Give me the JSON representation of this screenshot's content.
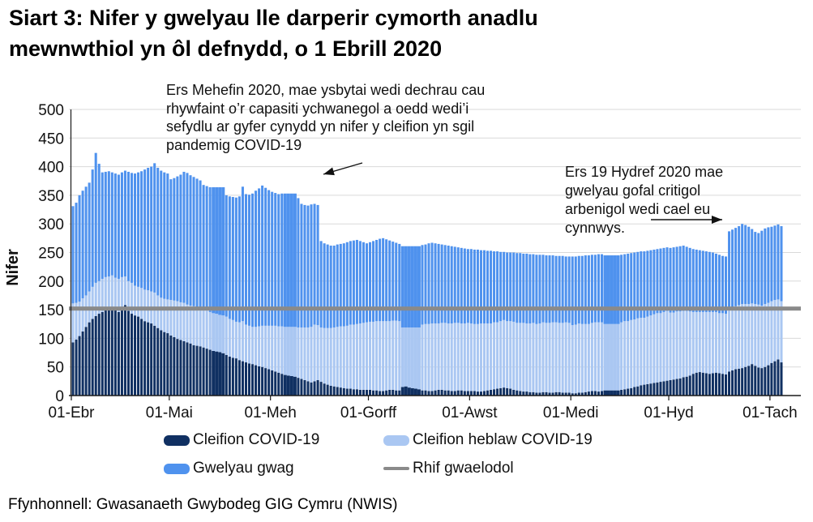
{
  "header": {
    "title_lines": [
      "Siart 3: Nifer y gwelyau lle darperir cymorth anadlu",
      "mewnwthiol yn ôl defnydd, o 1 Ebrill 2020"
    ]
  },
  "annotations": [
    {
      "lines": [
        "Ers Mehefin 2020, mae ysbytai wedi dechrau cau",
        "rhywfaint o’r capasiti ychwanegol a oedd wedi’i",
        "sefydlu ar gyfer cynydd yn nifer y cleifion yn sgil",
        "pandemig COVID-19"
      ]
    },
    {
      "lines": [
        "Ers 19 Hydref 2020 mae",
        "gwelyau gofal critigol",
        "arbenigol wedi cael eu",
        "cynnwys."
      ]
    }
  ],
  "legend": [
    {
      "label": "Cleifion COVID-19",
      "color": "#103062",
      "shape": "box"
    },
    {
      "label": "Cleifion heblaw COVID-19",
      "color": "#aac7f2",
      "shape": "box"
    },
    {
      "label": "Gwelyau gwag",
      "color": "#4f92ee",
      "shape": "box"
    },
    {
      "label": "Rhif gwaelodol",
      "color": "#8a8a8a",
      "shape": "line"
    }
  ],
  "footer": {
    "source": "Ffynhonnell: Gwasanaeth Gwybodeg GIG Cymru (NWIS)"
  },
  "colors": {
    "covid": "#103062",
    "non_covid": "#aac7f2",
    "empty_beds": "#4f92ee",
    "baseline": "#8a8a8a",
    "gridline": "#d9d9d9",
    "axis": "#1a1a1a"
  },
  "chart_data": {
    "type": "bar",
    "stacked": true,
    "title": "Siart 3: Nifer y gwelyau lle darperir cymorth anadlu mewnwthiol yn ôl defnydd, o 1 Ebrill 2020",
    "xlabel": "",
    "ylabel": "Nifer",
    "ylim": [
      0,
      500
    ],
    "y_ticks": [
      0,
      50,
      100,
      150,
      200,
      250,
      300,
      350,
      400,
      450,
      500
    ],
    "x_unit": "day",
    "x_tick_labels": [
      "01-Ebr",
      "01-Mai",
      "01-Meh",
      "01-Gorff",
      "01-Awst",
      "01-Medi",
      "01-Hyd",
      "01-Tach"
    ],
    "x_tick_day_offsets": [
      0,
      30,
      61,
      91,
      122,
      153,
      183,
      214
    ],
    "baseline": {
      "label": "Rhif gwaelodol",
      "value": 152
    },
    "legend_position": "bottom",
    "grid": "horizontal",
    "merged_bar_ranges": [
      [
        43,
        46
      ],
      [
        65,
        68
      ],
      [
        101,
        106
      ],
      [
        163,
        167
      ]
    ],
    "series": [
      {
        "name": "Cleifion COVID-19",
        "color": "#103062",
        "values": [
          93,
          98,
          104,
          112,
          120,
          128,
          134,
          139,
          143,
          146,
          150,
          152,
          155,
          149,
          146,
          152,
          158,
          148,
          143,
          140,
          138,
          134,
          130,
          128,
          126,
          122,
          118,
          114,
          111,
          109,
          105,
          102,
          99,
          97,
          95,
          93,
          91,
          88,
          87,
          86,
          84,
          82,
          80,
          78,
          77,
          76,
          74,
          71,
          68,
          66,
          65,
          62,
          60,
          58,
          56,
          55,
          53,
          51,
          50,
          48,
          46,
          44,
          42,
          40,
          38,
          36,
          35,
          34,
          33,
          31,
          29,
          27,
          25,
          23,
          25,
          27,
          24,
          21,
          19,
          17,
          16,
          15,
          14,
          13,
          12,
          12,
          11,
          11,
          10,
          10,
          10,
          10,
          9,
          9,
          8,
          8,
          9,
          10,
          10,
          9,
          9,
          15,
          16,
          14,
          13,
          12,
          11,
          9,
          9,
          8,
          8,
          9,
          10,
          10,
          9,
          9,
          8,
          8,
          9,
          9,
          8,
          8,
          8,
          8,
          7,
          7,
          8,
          9,
          10,
          11,
          12,
          13,
          14,
          13,
          12,
          10,
          9,
          8,
          7,
          7,
          6,
          6,
          5,
          5,
          6,
          6,
          5,
          5,
          6,
          6,
          5,
          5,
          5,
          4,
          4,
          5,
          5,
          6,
          7,
          8,
          8,
          7,
          8,
          9,
          9,
          9,
          9,
          9,
          10,
          11,
          12,
          13,
          15,
          16,
          18,
          19,
          20,
          21,
          22,
          23,
          24,
          25,
          26,
          27,
          28,
          29,
          30,
          32,
          33,
          35,
          38,
          40,
          41,
          40,
          39,
          38,
          39,
          40,
          39,
          38,
          37,
          42,
          44,
          46,
          47,
          48,
          50,
          52,
          55,
          52,
          49,
          48,
          50,
          53,
          57,
          60,
          63,
          58
        ]
      },
      {
        "name": "Cleifion heblaw COVID-19",
        "color": "#aac7f2",
        "values": [
          68,
          64,
          60,
          58,
          55,
          54,
          56,
          58,
          57,
          58,
          57,
          56,
          55,
          57,
          58,
          55,
          50,
          52,
          54,
          52,
          52,
          54,
          55,
          56,
          56,
          58,
          57,
          57,
          58,
          59,
          62,
          64,
          66,
          66,
          67,
          66,
          66,
          68,
          67,
          67,
          68,
          69,
          66,
          66,
          66,
          65,
          66,
          67,
          66,
          66,
          64,
          66,
          70,
          66,
          66,
          65,
          67,
          70,
          72,
          74,
          76,
          78,
          80,
          81,
          83,
          84,
          85,
          86,
          87,
          88,
          90,
          92,
          94,
          97,
          99,
          96,
          95,
          97,
          99,
          101,
          103,
          105,
          107,
          108,
          110,
          112,
          113,
          114,
          116,
          117,
          118,
          119,
          120,
          121,
          122,
          122,
          121,
          120,
          121,
          122,
          121,
          104,
          103,
          105,
          106,
          107,
          108,
          115,
          116,
          117,
          118,
          117,
          116,
          117,
          118,
          117,
          118,
          119,
          118,
          117,
          118,
          119,
          118,
          117,
          118,
          119,
          118,
          117,
          116,
          117,
          116,
          117,
          118,
          117,
          118,
          119,
          118,
          119,
          120,
          119,
          120,
          121,
          120,
          121,
          122,
          121,
          122,
          123,
          122,
          121,
          122,
          123,
          122,
          119,
          120,
          121,
          120,
          119,
          118,
          119,
          120,
          121,
          120,
          116,
          116,
          116,
          116,
          116,
          118,
          119,
          118,
          119,
          118,
          119,
          118,
          117,
          118,
          119,
          120,
          121,
          120,
          121,
          122,
          118,
          117,
          118,
          117,
          116,
          115,
          112,
          108,
          106,
          105,
          106,
          107,
          108,
          107,
          106,
          105,
          106,
          106,
          110,
          109,
          110,
          111,
          112,
          110,
          108,
          106,
          108,
          110,
          109,
          110,
          109,
          108,
          107,
          105,
          107
        ]
      },
      {
        "name": "Gwelyau gwag",
        "color": "#4f92ee",
        "values": [
          170,
          175,
          186,
          188,
          190,
          190,
          205,
          227,
          205,
          186,
          184,
          184,
          180,
          182,
          182,
          183,
          185,
          191,
          192,
          196,
          200,
          204,
          210,
          214,
          218,
          226,
          223,
          222,
          221,
          220,
          211,
          214,
          218,
          223,
          229,
          230,
          228,
          226,
          225,
          223,
          216,
          215,
          218,
          220,
          221,
          223,
          224,
          212,
          214,
          215,
          217,
          220,
          235,
          228,
          229,
          233,
          238,
          241,
          245,
          241,
          237,
          234,
          232,
          231,
          232,
          233,
          233,
          233,
          233,
          226,
          216,
          214,
          213,
          214,
          211,
          210,
          151,
          148,
          146,
          144,
          143,
          144,
          144,
          145,
          146,
          146,
          147,
          147,
          144,
          141,
          138,
          139,
          141,
          142,
          144,
          145,
          143,
          141,
          138,
          136,
          135,
          142,
          142,
          142,
          142,
          142,
          142,
          139,
          139,
          141,
          141,
          140,
          139,
          137,
          136,
          136,
          135,
          133,
          132,
          132,
          131,
          129,
          130,
          130,
          130,
          128,
          128,
          127,
          127,
          124,
          124,
          121,
          119,
          120,
          120,
          121,
          122,
          122,
          121,
          122,
          121,
          120,
          121,
          120,
          118,
          118,
          118,
          117,
          116,
          117,
          117,
          115,
          116,
          120,
          119,
          118,
          119,
          120,
          120,
          119,
          118,
          119,
          119,
          120,
          120,
          120,
          120,
          120,
          118,
          117,
          118,
          117,
          117,
          116,
          116,
          116,
          115,
          114,
          113,
          112,
          113,
          112,
          111,
          113,
          114,
          113,
          114,
          114,
          112,
          111,
          110,
          109,
          108,
          107,
          106,
          105,
          104,
          102,
          102,
          100,
          100,
          135,
          137,
          137,
          138,
          140,
          138,
          135,
          130,
          126,
          125,
          131,
          132,
          132,
          130,
          130,
          131,
          131
        ]
      }
    ]
  }
}
